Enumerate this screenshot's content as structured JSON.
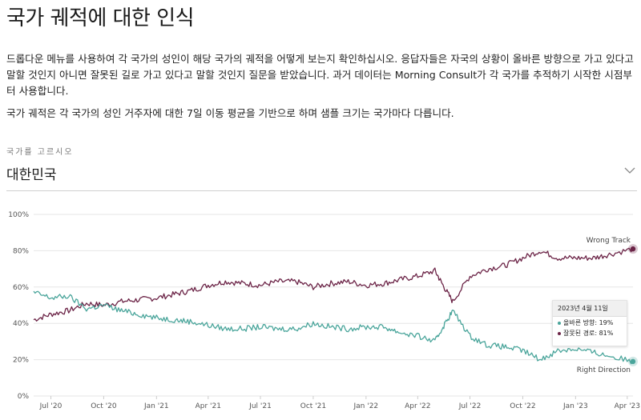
{
  "page": {
    "title": "국가 궤적에 대한 인식",
    "description1": "드롭다운 메뉴를 사용하여 각 국가의 성인이 해당 국가의 궤적을 어떻게 보는지 확인하십시오. 응답자들은 자국의 상황이 올바른 방향으로 가고 있다고 말할 것인지 아니면 잘못된 길로 가고 있다고 말할 것인지 질문을 받았습니다. 과거 데이터는 Morning Consult가 각 국가를 추적하기 시작한 시점부터 사용합니다.",
    "description2": "국가 궤적은 각 국가의 성인 거주자에 대한 7일 이동 평균을 기반으로 하며 샘플 크기는 국가마다 다릅니다.",
    "select_label": "국가를 고르시오",
    "select_value": "대한민국",
    "chevron_icon": "chevron-down-icon"
  },
  "tooltip": {
    "date": "2023년 4월 11일",
    "right_label": "올바른 방향: 19%",
    "wrong_label": "잘못된 경로: 81%"
  },
  "chart_data": {
    "type": "line",
    "ylim": [
      0,
      100
    ],
    "y_ticks": [
      "0%",
      "20%",
      "40%",
      "60%",
      "80%",
      "100%"
    ],
    "x_ticks": [
      "Jul '20",
      "Oct '20",
      "Jan '21",
      "Apr '21",
      "Jul '21",
      "Oct '21",
      "Jan '22",
      "Apr '22",
      "Jul '22",
      "Oct '22",
      "Jan '23",
      "Apr '23"
    ],
    "x_range": [
      "2020-06-01",
      "2023-04-11"
    ],
    "grid": true,
    "series": [
      {
        "name": "Wrong Track",
        "color": "#6b2346",
        "x": [
          "2020-06-01",
          "2020-07-01",
          "2020-08-01",
          "2020-09-01",
          "2020-10-01",
          "2020-11-01",
          "2020-12-01",
          "2021-01-01",
          "2021-02-01",
          "2021-03-01",
          "2021-04-01",
          "2021-05-01",
          "2021-06-01",
          "2021-07-01",
          "2021-08-01",
          "2021-09-01",
          "2021-10-01",
          "2021-11-01",
          "2021-12-01",
          "2022-01-01",
          "2022-02-01",
          "2022-03-01",
          "2022-04-01",
          "2022-05-01",
          "2022-05-15",
          "2022-06-01",
          "2022-07-01",
          "2022-08-01",
          "2022-09-01",
          "2022-10-01",
          "2022-11-01",
          "2022-12-01",
          "2023-01-01",
          "2023-02-01",
          "2023-03-01",
          "2023-04-11"
        ],
        "values": [
          42,
          45,
          47,
          51,
          50,
          52,
          53,
          54,
          56,
          58,
          61,
          63,
          62,
          61,
          63,
          63,
          60,
          62,
          63,
          61,
          62,
          64,
          66,
          69,
          61,
          52,
          66,
          70,
          72,
          76,
          80,
          76,
          76,
          76,
          78,
          81
        ]
      },
      {
        "name": "Right Direction",
        "color": "#4aa59b",
        "x": [
          "2020-06-01",
          "2020-07-01",
          "2020-08-01",
          "2020-09-01",
          "2020-10-01",
          "2020-11-01",
          "2020-12-01",
          "2021-01-01",
          "2021-02-01",
          "2021-03-01",
          "2021-04-01",
          "2021-05-01",
          "2021-06-01",
          "2021-07-01",
          "2021-08-01",
          "2021-09-01",
          "2021-10-01",
          "2021-11-01",
          "2021-12-01",
          "2022-01-01",
          "2022-02-01",
          "2022-03-01",
          "2022-04-01",
          "2022-05-01",
          "2022-05-15",
          "2022-06-01",
          "2022-07-01",
          "2022-08-01",
          "2022-09-01",
          "2022-10-01",
          "2022-11-01",
          "2022-12-01",
          "2023-01-01",
          "2023-02-01",
          "2023-03-01",
          "2023-04-11"
        ],
        "values": [
          57,
          54,
          55,
          48,
          50,
          47,
          45,
          43,
          42,
          41,
          39,
          37,
          37,
          38,
          37,
          37,
          40,
          38,
          37,
          38,
          38,
          35,
          33,
          30,
          38,
          47,
          33,
          28,
          27,
          25,
          20,
          25,
          26,
          24,
          22,
          19
        ]
      }
    ]
  }
}
